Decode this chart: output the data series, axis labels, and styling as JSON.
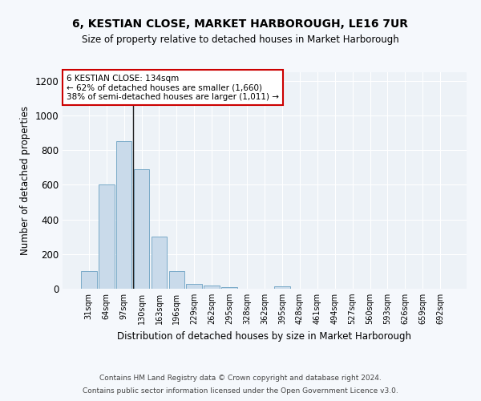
{
  "title": "6, KESTIAN CLOSE, MARKET HARBOROUGH, LE16 7UR",
  "subtitle": "Size of property relative to detached houses in Market Harborough",
  "xlabel": "Distribution of detached houses by size in Market Harborough",
  "ylabel": "Number of detached properties",
  "bar_color": "#c9daea",
  "bar_edge_color": "#7aaac8",
  "categories": [
    "31sqm",
    "64sqm",
    "97sqm",
    "130sqm",
    "163sqm",
    "196sqm",
    "229sqm",
    "262sqm",
    "295sqm",
    "328sqm",
    "362sqm",
    "395sqm",
    "428sqm",
    "461sqm",
    "494sqm",
    "527sqm",
    "560sqm",
    "593sqm",
    "626sqm",
    "659sqm",
    "692sqm"
  ],
  "values": [
    100,
    600,
    850,
    690,
    300,
    100,
    30,
    20,
    10,
    0,
    0,
    15,
    0,
    0,
    0,
    0,
    0,
    0,
    0,
    0,
    0
  ],
  "ylim": [
    0,
    1250
  ],
  "yticks": [
    0,
    200,
    400,
    600,
    800,
    1000,
    1200
  ],
  "property_bin_index": 3,
  "annotation_text": "6 KESTIAN CLOSE: 134sqm\n← 62% of detached houses are smaller (1,660)\n38% of semi-detached houses are larger (1,011) →",
  "footer_line1": "Contains HM Land Registry data © Crown copyright and database right 2024.",
  "footer_line2": "Contains public sector information licensed under the Open Government Licence v3.0.",
  "bg_color": "#f5f8fc",
  "plot_bg_color": "#edf2f7",
  "grid_color": "#ffffff",
  "vline_color": "#222222",
  "annotation_box_facecolor": "#ffffff",
  "annotation_box_edgecolor": "#cc0000"
}
